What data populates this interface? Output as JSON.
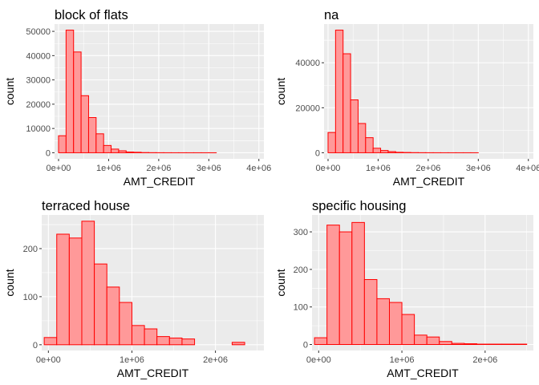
{
  "chart_data": [
    {
      "type": "bar",
      "title": "block of flats",
      "xlabel": "AMT_CREDIT",
      "ylabel": "count",
      "bin_starts": [
        0,
        150000,
        300000,
        450000,
        600000,
        750000,
        900000,
        1050000,
        1200000,
        1350000,
        1500000,
        1650000,
        1800000,
        1950000,
        2100000,
        2250000,
        2400000,
        2550000,
        2700000,
        2850000,
        3000000,
        3150000,
        3300000,
        3450000,
        3600000,
        3750000,
        3900000
      ],
      "bin_width": 150000,
      "values": [
        7000,
        50500,
        41500,
        23500,
        14500,
        7800,
        3000,
        1500,
        800,
        300,
        200,
        80,
        40,
        20,
        10,
        5,
        3,
        2,
        1,
        1,
        1,
        0,
        0,
        0,
        0,
        0,
        0
      ],
      "xlim": [
        -80000,
        4100000
      ],
      "ylim": [
        -2500,
        53000
      ],
      "xticks": [
        0,
        1000000,
        2000000,
        3000000,
        4000000
      ],
      "xtick_labels": [
        "0e+00",
        "1e+06",
        "2e+06",
        "3e+06",
        "4e+06"
      ],
      "yticks": [
        0,
        10000,
        20000,
        30000,
        40000,
        50000
      ],
      "ytick_labels": [
        "0",
        "10000",
        "20000",
        "30000",
        "40000",
        "50000"
      ]
    },
    {
      "type": "bar",
      "title": "na",
      "xlabel": "AMT_CREDIT",
      "ylabel": "count",
      "bin_starts": [
        0,
        150000,
        300000,
        450000,
        600000,
        750000,
        900000,
        1050000,
        1200000,
        1350000,
        1500000,
        1650000,
        1800000,
        1950000,
        2100000,
        2250000,
        2400000,
        2550000,
        2700000,
        2850000,
        3000000,
        3150000,
        3300000,
        3450000,
        3600000,
        3750000,
        3900000
      ],
      "bin_width": 150000,
      "values": [
        9000,
        54500,
        44000,
        23500,
        13000,
        6700,
        2000,
        1000,
        500,
        200,
        120,
        60,
        30,
        15,
        8,
        4,
        2,
        1,
        1,
        1,
        0,
        0,
        0,
        0,
        0,
        0,
        0
      ],
      "xlim": [
        -80000,
        4100000
      ],
      "ylim": [
        -2700,
        57200
      ],
      "xticks": [
        0,
        1000000,
        2000000,
        3000000,
        4000000
      ],
      "xtick_labels": [
        "0e+00",
        "1e+06",
        "2e+06",
        "3e+06",
        "4e+06"
      ],
      "yticks": [
        0,
        20000,
        40000
      ],
      "ytick_labels": [
        "0",
        "20000",
        "40000"
      ]
    },
    {
      "type": "bar",
      "title": "terraced house",
      "xlabel": "AMT_CREDIT",
      "ylabel": "count",
      "bin_starts": [
        -50000,
        100000,
        250000,
        400000,
        550000,
        700000,
        850000,
        1000000,
        1150000,
        1300000,
        1450000,
        1600000,
        1750000,
        1900000,
        2050000,
        2200000,
        2350000
      ],
      "bin_width": 150000,
      "values": [
        15,
        230,
        222,
        257,
        168,
        120,
        88,
        40,
        33,
        17,
        14,
        12,
        0,
        0,
        0,
        5,
        0
      ],
      "xlim": [
        -80000,
        2580000
      ],
      "ylim": [
        -12,
        270
      ],
      "xticks": [
        0,
        1000000,
        2000000
      ],
      "xtick_labels": [
        "0e+00",
        "1e+06",
        "2e+06"
      ],
      "yticks": [
        0,
        100,
        200
      ],
      "ytick_labels": [
        "0",
        "100",
        "200"
      ]
    },
    {
      "type": "bar",
      "title": "specific housing",
      "xlabel": "AMT_CREDIT",
      "ylabel": "count",
      "bin_starts": [
        -50000,
        100000,
        250000,
        400000,
        550000,
        700000,
        850000,
        1000000,
        1150000,
        1300000,
        1450000,
        1600000,
        1750000,
        1900000,
        2050000,
        2200000,
        2350000
      ],
      "bin_width": 150000,
      "values": [
        18,
        318,
        300,
        325,
        173,
        122,
        112,
        80,
        25,
        20,
        8,
        3,
        2,
        1,
        1,
        1,
        1
      ],
      "xlim": [
        -80000,
        2580000
      ],
      "ylim": [
        -16,
        345
      ],
      "xticks": [
        0,
        1000000,
        2000000
      ],
      "xtick_labels": [
        "0e+00",
        "1e+06",
        "2e+06"
      ],
      "yticks": [
        0,
        100,
        200,
        300
      ],
      "ytick_labels": [
        "0",
        "100",
        "200",
        "300"
      ]
    }
  ],
  "colors": {
    "bar_fill": "#ff9999",
    "bar_outline": "#ff0000",
    "panel_background": "#ebebeb",
    "grid": "#ffffff"
  }
}
